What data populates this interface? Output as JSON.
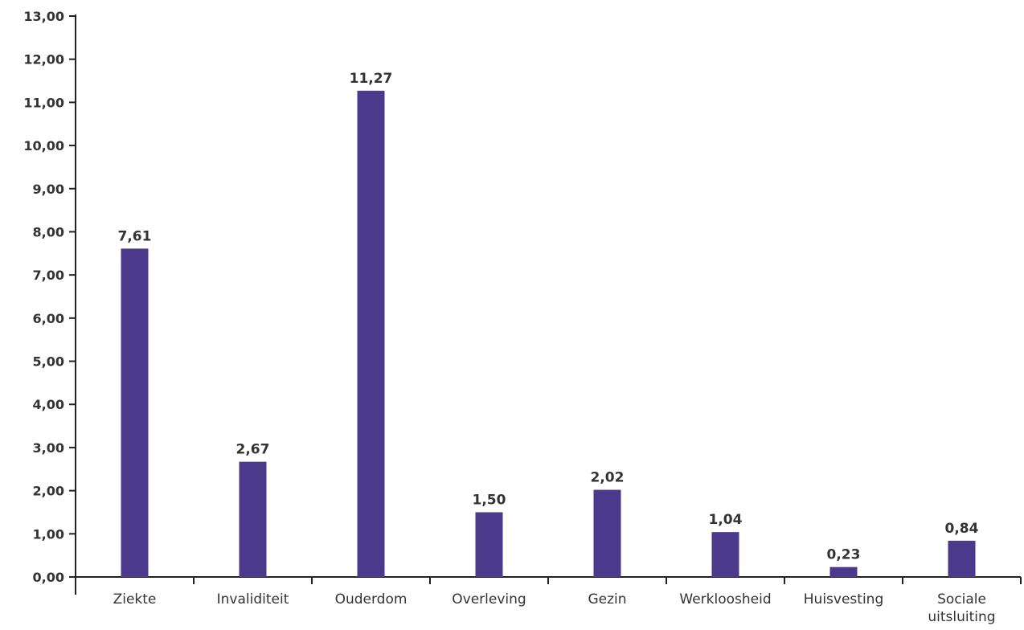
{
  "chart_data": {
    "type": "bar",
    "categories": [
      "Ziekte",
      "Invaliditeit",
      "Ouderdom",
      "Overleving",
      "Gezin",
      "Werkloosheid",
      "Huisvesting",
      "Sociale uitsluiting"
    ],
    "category_lines": [
      [
        "Ziekte"
      ],
      [
        "Invaliditeit"
      ],
      [
        "Ouderdom"
      ],
      [
        "Overleving"
      ],
      [
        "Gezin"
      ],
      [
        "Werkloosheid"
      ],
      [
        "Huisvesting"
      ],
      [
        "Sociale",
        "uitsluiting"
      ]
    ],
    "values": [
      7.61,
      2.67,
      11.27,
      1.5,
      2.02,
      1.04,
      0.23,
      0.84
    ],
    "value_labels": [
      "7,61",
      "2,67",
      "11,27",
      "1,50",
      "2,02",
      "1,04",
      "0,23",
      "0,84"
    ],
    "yticks": [
      0,
      1,
      2,
      3,
      4,
      5,
      6,
      7,
      8,
      9,
      10,
      11,
      12,
      13
    ],
    "ytick_labels": [
      "0,00",
      "1,00",
      "2,00",
      "3,00",
      "4,00",
      "5,00",
      "6,00",
      "7,00",
      "8,00",
      "9,00",
      "10,00",
      "11,00",
      "12,00",
      "13,00"
    ],
    "ylim": [
      0,
      13
    ],
    "title": "",
    "xlabel": "",
    "ylabel": "",
    "grid": false,
    "legend": "none",
    "bar_color": "#4b3a8c"
  }
}
